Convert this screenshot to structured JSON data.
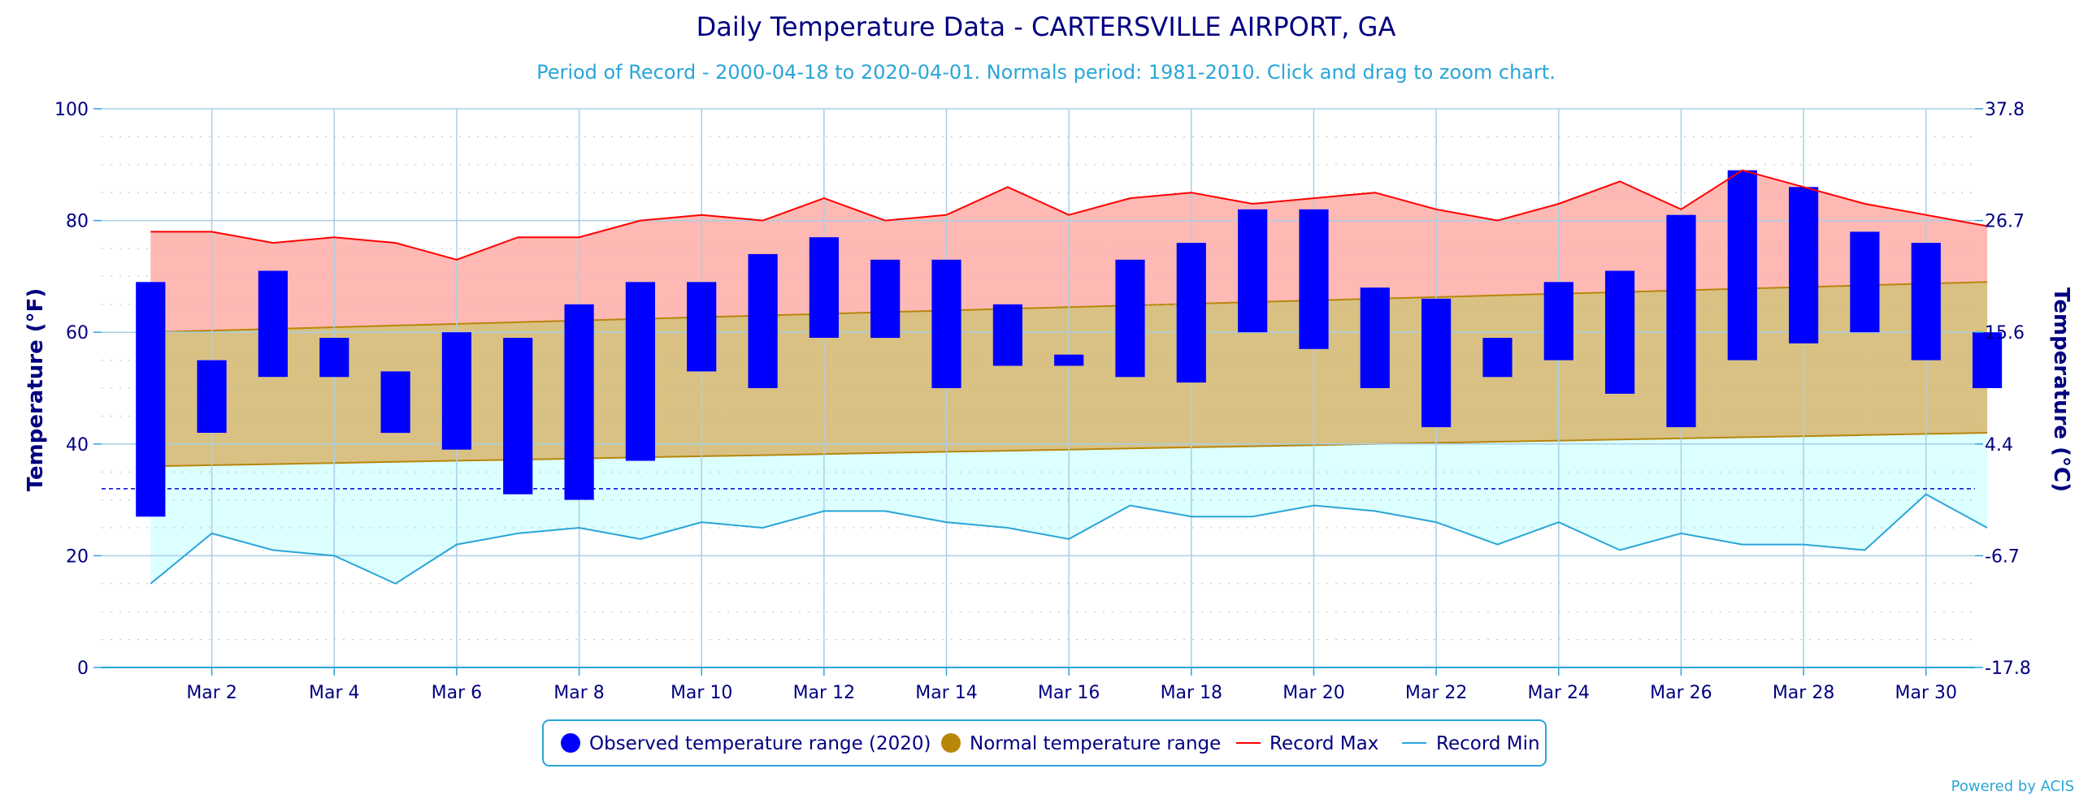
{
  "chart_data": {
    "type": "bar",
    "title": "Daily Temperature Data - CARTERSVILLE AIRPORT, GA",
    "subtitle": "Period of Record - 2000-04-18 to 2020-04-01. Normals period: 1981-2010. Click and drag to zoom chart.",
    "ylabel": "Temperature (°F)",
    "ylabel_right": "Temperature (°C)",
    "ylim": [
      0,
      100
    ],
    "y_ticks": [
      "0",
      "20",
      "40",
      "60",
      "80",
      "100"
    ],
    "y_ticks_right": [
      "-17.8",
      "-6.7",
      "4.4",
      "15.6",
      "26.7",
      "37.8"
    ],
    "x_ticks": [
      "Mar 2",
      "Mar 4",
      "Mar 6",
      "Mar 8",
      "Mar 10",
      "Mar 12",
      "Mar 14",
      "Mar 16",
      "Mar 18",
      "Mar 20",
      "Mar 22",
      "Mar 24",
      "Mar 26",
      "Mar 28",
      "Mar 30"
    ],
    "days": [
      1,
      2,
      3,
      4,
      5,
      6,
      7,
      8,
      9,
      10,
      11,
      12,
      13,
      14,
      15,
      16,
      17,
      18,
      19,
      20,
      21,
      22,
      23,
      24,
      25,
      26,
      27,
      28,
      29,
      30,
      31
    ],
    "freezing_line": 32,
    "grid": true,
    "legend_position": "bottom-center",
    "series": [
      {
        "name": "Observed temperature range (2020)",
        "color": "#0000ff",
        "low": [
          27,
          42,
          52,
          52,
          42,
          39,
          31,
          30,
          37,
          53,
          50,
          59,
          59,
          50,
          54,
          54,
          52,
          51,
          60,
          57,
          50,
          43,
          52,
          55,
          49,
          43,
          55,
          58,
          60,
          55,
          50
        ],
        "high": [
          69,
          55,
          71,
          59,
          53,
          60,
          59,
          65,
          69,
          69,
          74,
          77,
          73,
          73,
          65,
          56,
          73,
          76,
          82,
          82,
          68,
          66,
          59,
          69,
          71,
          81,
          89,
          86,
          78,
          76,
          60
        ]
      },
      {
        "name": "Normal temperature range",
        "color": "#b8860b",
        "low_start": 36,
        "low_end": 42,
        "high_start": 60,
        "high_end": 69
      },
      {
        "name": "Record Max",
        "color": "#ff0000",
        "values": [
          78,
          78,
          76,
          77,
          76,
          73,
          77,
          77,
          80,
          81,
          80,
          84,
          80,
          81,
          86,
          81,
          84,
          85,
          83,
          84,
          85,
          82,
          80,
          83,
          87,
          82,
          89,
          86,
          83,
          81,
          79
        ]
      },
      {
        "name": "Record Min",
        "color": "#2aa5d8",
        "values": [
          15,
          24,
          21,
          20,
          15,
          22,
          24,
          25,
          23,
          26,
          25,
          28,
          28,
          26,
          25,
          23,
          29,
          27,
          27,
          29,
          28,
          26,
          22,
          26,
          21,
          24,
          22,
          22,
          21,
          31,
          25
        ]
      }
    ],
    "credit": "Powered by ACIS"
  }
}
